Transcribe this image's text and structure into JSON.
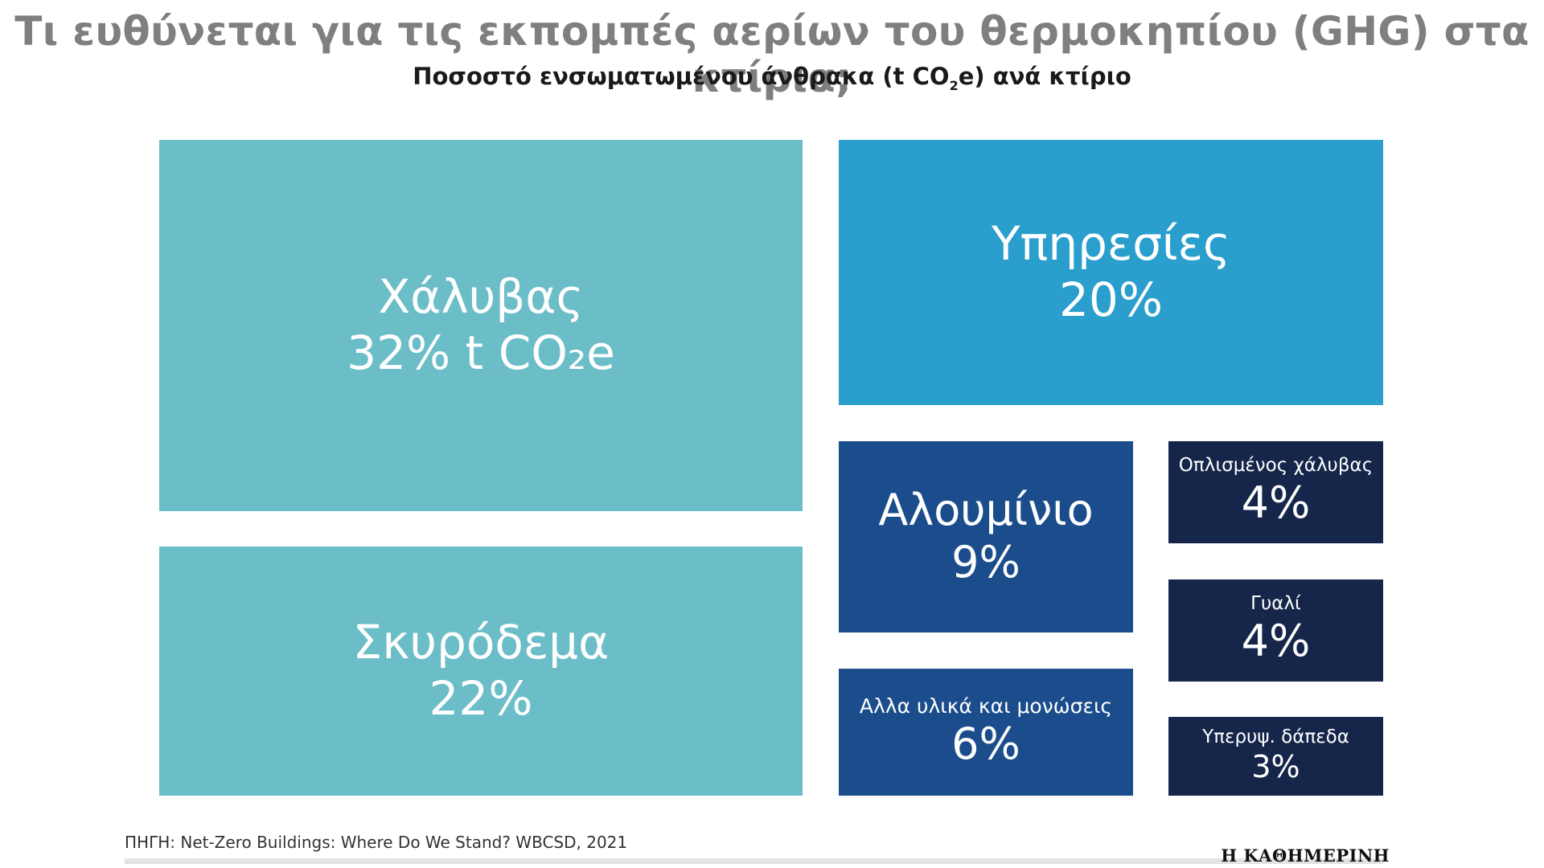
{
  "title": "Τι ευθύνεται για τις εκπομπές αερίων του θερμοκηπίου (GHG) στα κτίρια;",
  "subtitle": {
    "text_before": "Ποσοστό ενσωματωμένου άνθρακα (t CO",
    "sub": "2",
    "text_after": "e) ανά κτίριο"
  },
  "source": "ΠΗΓΗ: Net-Zero Buildings: Where Do We Stand? WBCSD, 2021",
  "brand": "Η ΚΑΘΗΜΕΡΙΝΗ",
  "colors": {
    "teal": "#6bbdc7",
    "blue": "#2a9ecd",
    "mid_blue": "#1b4d8c",
    "navy": "#15264a"
  },
  "chart_data": {
    "type": "treemap",
    "unit": "% t CO2e",
    "items": [
      {
        "label": "Χάλυβας",
        "value": 32,
        "display": "32% t CO₂e",
        "color": "teal"
      },
      {
        "label": "Σκυρόδεμα",
        "value": 22,
        "display": "22%",
        "color": "teal"
      },
      {
        "label": "Υπηρεσίες",
        "value": 20,
        "display": "20%",
        "color": "blue"
      },
      {
        "label": "Αλουμίνιο",
        "value": 9,
        "display": "9%",
        "color": "mid_blue"
      },
      {
        "label": "Αλλα υλικά και μονώσεις",
        "value": 6,
        "display": "6%",
        "color": "mid_blue"
      },
      {
        "label": "Οπλισμένος χάλυβας",
        "value": 4,
        "display": "4%",
        "color": "navy"
      },
      {
        "label": "Γυαλί",
        "value": 4,
        "display": "4%",
        "color": "navy"
      },
      {
        "label": "Υπερυψ. δάπεδα",
        "value": 3,
        "display": "3%",
        "color": "navy"
      }
    ]
  }
}
